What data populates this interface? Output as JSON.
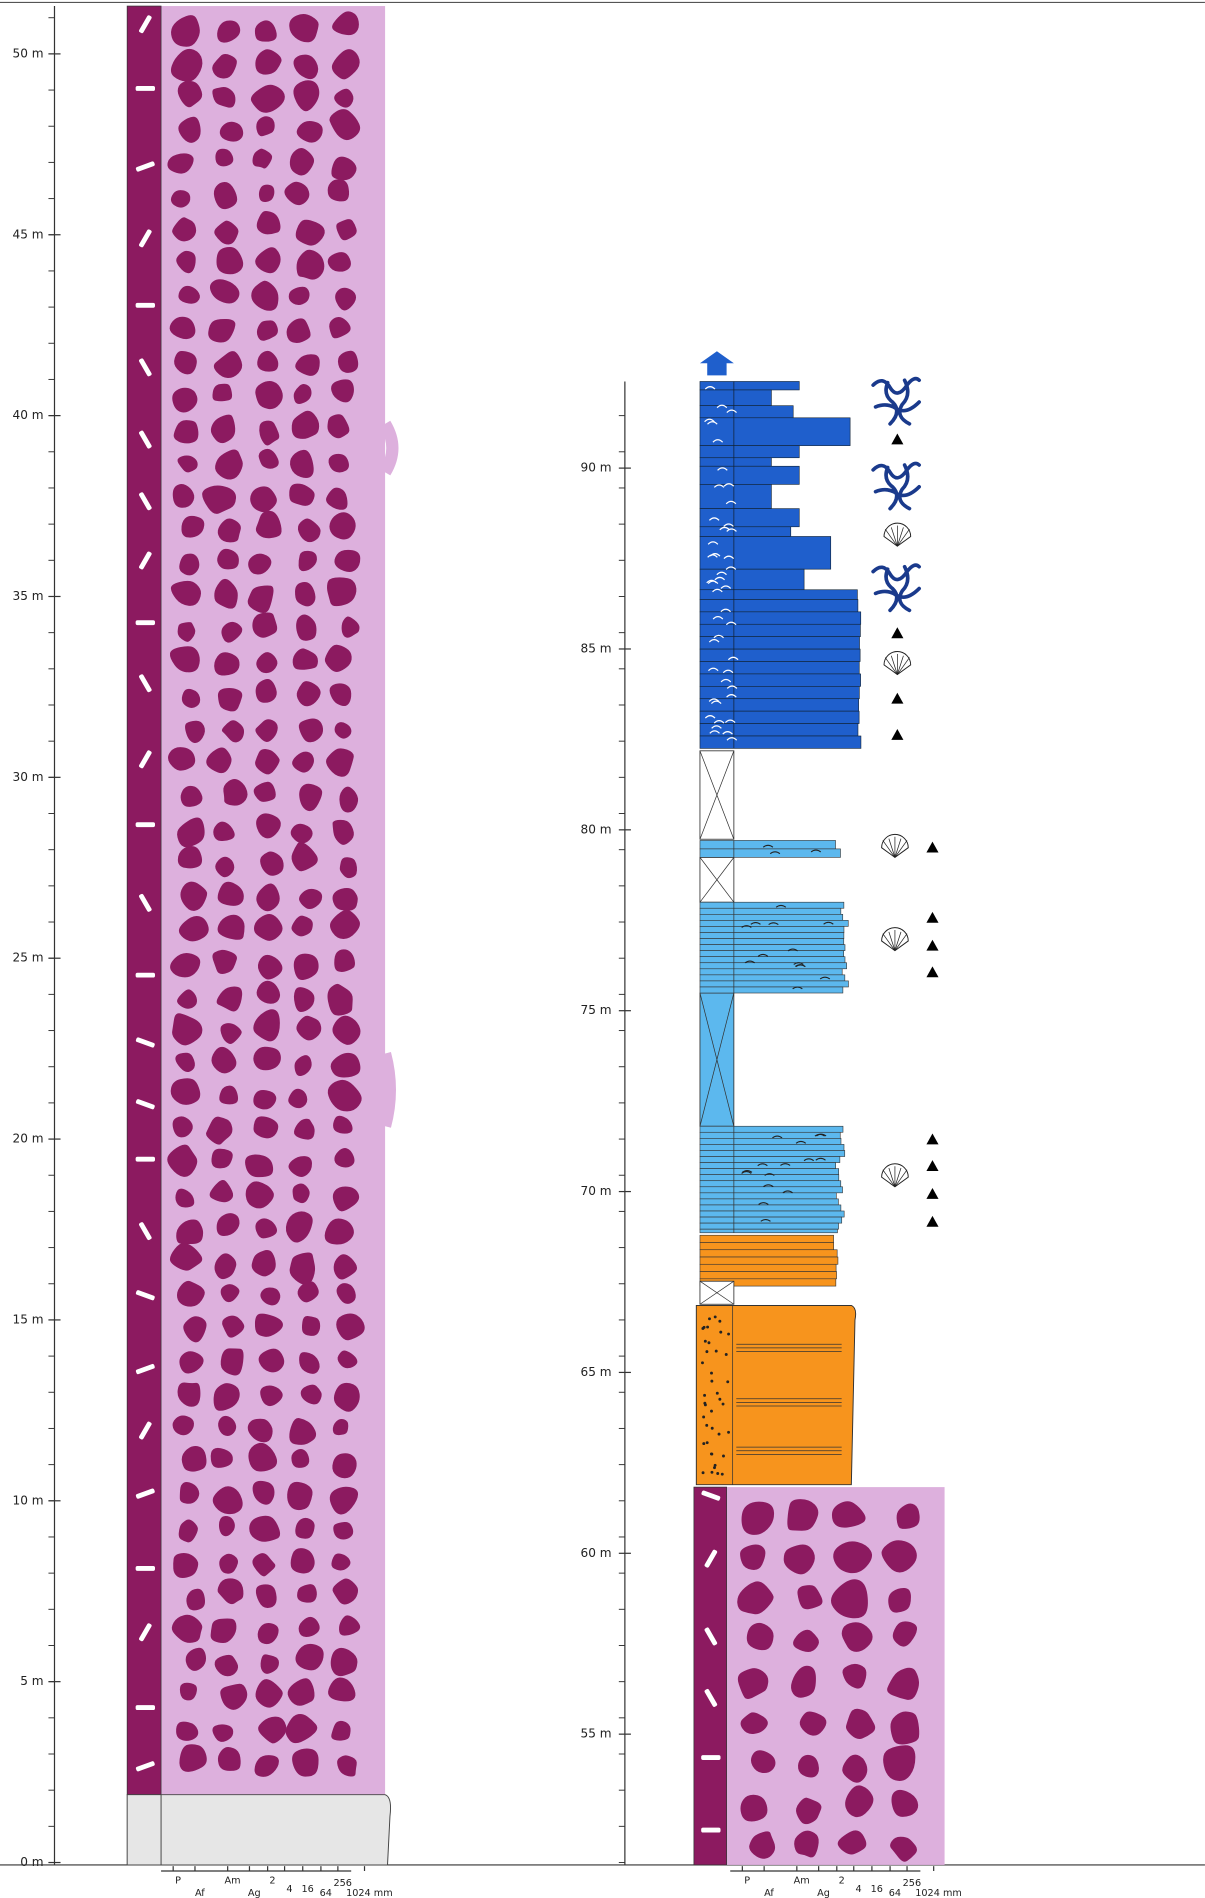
{
  "left_section": {
    "depth_labels": [
      "0 m",
      "5 m",
      "10 m",
      "15 m",
      "20 m",
      "25 m",
      "30 m",
      "35 m",
      "40 m",
      "45 m",
      "50 m"
    ],
    "grain_size_scale": [
      "P",
      "Af",
      "Am",
      "Ag",
      "2",
      "4",
      "16",
      "64",
      "256",
      "1024 mm"
    ]
  },
  "right_section": {
    "depth_labels": [
      "55 m",
      "60 m",
      "65 m",
      "70 m",
      "75 m",
      "80 m",
      "85 m",
      "90 m"
    ],
    "grain_size_scale": [
      "P",
      "Af",
      "Am",
      "Ag",
      "2",
      "4",
      "16",
      "64",
      "256",
      "1024 mm"
    ]
  }
}
